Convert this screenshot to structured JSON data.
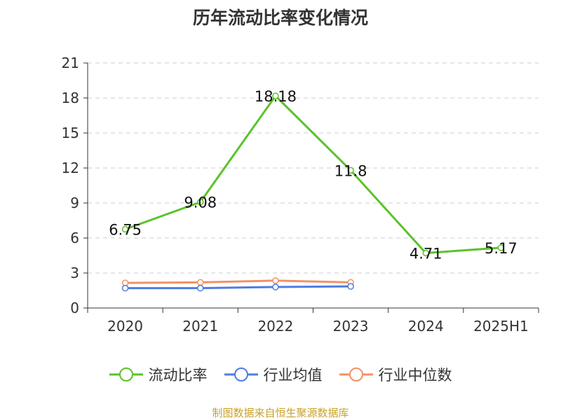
{
  "title": "历年流动比率变化情况",
  "source_note": "制图数据来自恒生聚源数据库",
  "colors": {
    "current_ratio": "#5bc22a",
    "industry_avg": "#4e7de0",
    "industry_median": "#f39166",
    "axis": "#333333",
    "grid": "#cccccc"
  },
  "chart_data": {
    "type": "line",
    "title": "历年流动比率变化情况",
    "xlabel": "",
    "ylabel": "",
    "categories": [
      "2020",
      "2021",
      "2022",
      "2023",
      "2024",
      "2025H1"
    ],
    "ylim": [
      0,
      21
    ],
    "yticks": [
      0,
      3,
      6,
      9,
      12,
      15,
      18,
      21
    ],
    "grid": true,
    "legend_position": "bottom",
    "series": [
      {
        "name": "流动比率",
        "values": [
          6.75,
          9.08,
          18.18,
          11.8,
          4.71,
          5.17
        ],
        "labels": [
          "6.75",
          "9.08",
          "18.18",
          "11.8",
          "4.71",
          "5.17"
        ]
      },
      {
        "name": "行业均值",
        "values": [
          1.7,
          1.7,
          1.8,
          1.85,
          null,
          null
        ]
      },
      {
        "name": "行业中位数",
        "values": [
          2.15,
          2.2,
          2.35,
          2.2,
          null,
          null
        ]
      }
    ]
  }
}
